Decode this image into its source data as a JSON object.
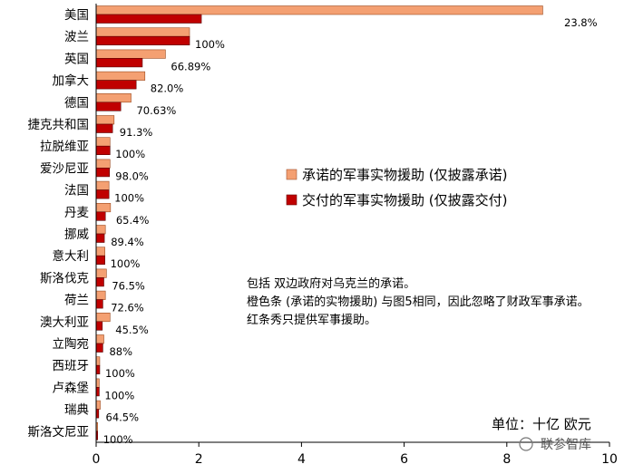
{
  "chart_data": {
    "type": "bar",
    "orientation": "horizontal",
    "categories": [
      "美国",
      "波兰",
      "英国",
      "加拿大",
      "德国",
      "捷克共和国",
      "拉脱维亚",
      "爱沙尼亚",
      "法国",
      "丹麦",
      "挪威",
      "意大利",
      "斯洛伐克",
      "荷兰",
      "澳大利亚",
      "立陶宛",
      "西班牙",
      "卢森堡",
      "瑞典",
      "斯洛文尼亚"
    ],
    "series": [
      {
        "name": "承诺的军事实物援助 (仅披露承诺)",
        "color": "#F4A072",
        "values": [
          8.7,
          1.82,
          1.35,
          0.95,
          0.68,
          0.35,
          0.27,
          0.27,
          0.25,
          0.28,
          0.18,
          0.17,
          0.2,
          0.18,
          0.27,
          0.15,
          0.07,
          0.06,
          0.08,
          0.03
        ]
      },
      {
        "name": "交付的军事实物援助 (仅披露交付)",
        "color": "#C00000",
        "values": [
          2.05,
          1.82,
          0.9,
          0.78,
          0.48,
          0.32,
          0.27,
          0.26,
          0.25,
          0.18,
          0.16,
          0.17,
          0.15,
          0.13,
          0.12,
          0.13,
          0.07,
          0.06,
          0.05,
          0.03
        ]
      }
    ],
    "data_labels": [
      "23.8%",
      "100%",
      "66.89%",
      "82.0%",
      "70.63%",
      "91.3%",
      "100%",
      "98.0%",
      "100%",
      "65.4%",
      "89.4%",
      "100%",
      "76.5%",
      "72.6%",
      "45.5%",
      "88%",
      "100%",
      "100%",
      "64.5%",
      "100%"
    ],
    "xlim": [
      0,
      10
    ],
    "xticks": [
      "0",
      "2",
      "4",
      "6",
      "8",
      "10"
    ],
    "grid": false,
    "legend": "center-right",
    "unit_label": "单位：十亿 欧元",
    "notes": [
      "包括 双边政府对乌克兰的承诺。",
      "橙色条 (承诺的实物援助) 与图5相同，因此忽略了财政军事承诺。",
      "红条秀只提供军事援助。"
    ],
    "watermark": "联参智库"
  }
}
